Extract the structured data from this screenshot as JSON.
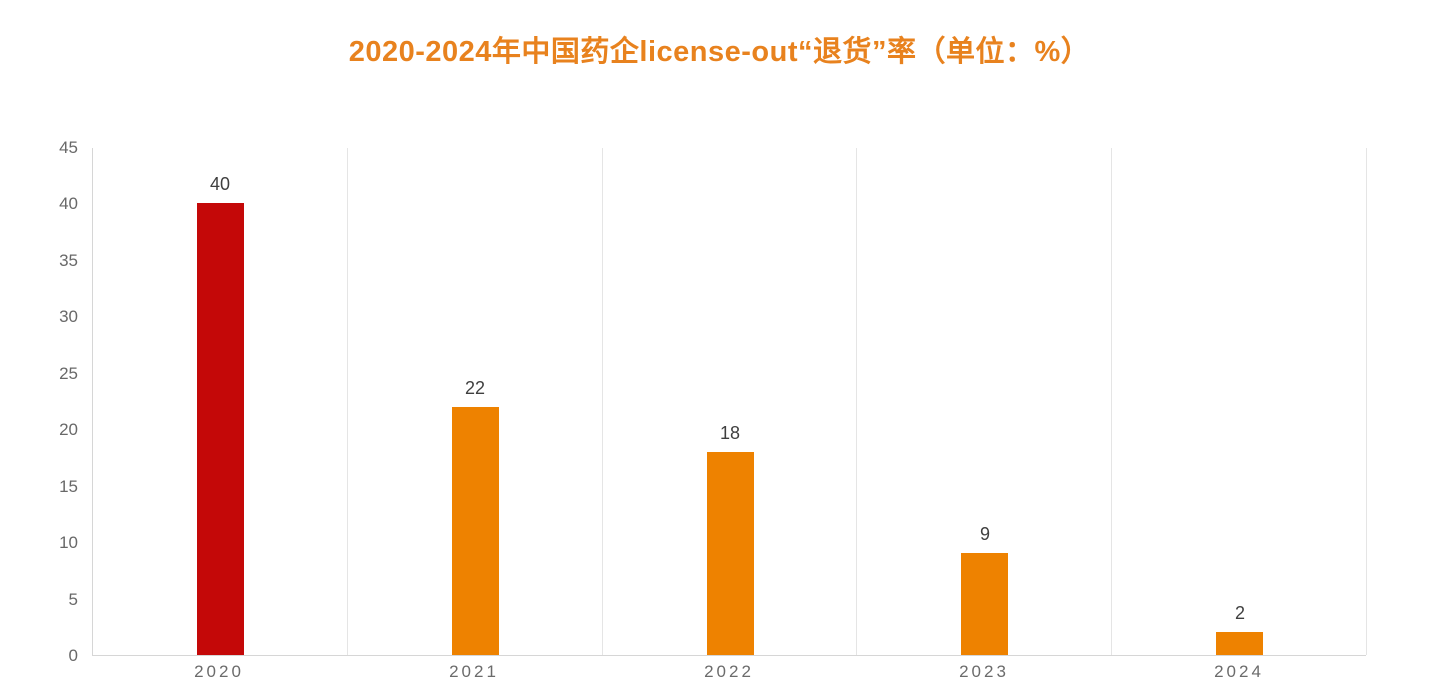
{
  "chart_data": {
    "type": "bar",
    "title": "2020-2024年中国药企license-out“退货”率（单位：%）",
    "categories": [
      "2020",
      "2021",
      "2022",
      "2023",
      "2024"
    ],
    "values": [
      40,
      22,
      18,
      9,
      2
    ],
    "series": [
      {
        "name": "license-out退货率",
        "values": [
          40,
          22,
          18,
          9,
          2
        ]
      }
    ],
    "xlabel": "",
    "ylabel": "",
    "ylim": [
      0,
      45
    ],
    "yticks": [
      0,
      5,
      10,
      15,
      20,
      25,
      30,
      35,
      40,
      45
    ],
    "grid": "vertical-category-separators-on",
    "horizontal_grid": "off",
    "legend": "none",
    "data_labels": [
      "40",
      "22",
      "18",
      "9",
      "2"
    ],
    "bar_colors": [
      "#c40808",
      "#ee8200",
      "#ee8200",
      "#ee8200",
      "#ee8200"
    ]
  },
  "style": {
    "title_color": "#e8821e",
    "highlight_bar_color": "#c40808",
    "default_bar_color": "#ee8200",
    "axis_line_color": "#d6d6d6",
    "gridline_color": "#e5e5e5",
    "tick_label_color": "#6b6b6b",
    "value_label_color": "#3f3f3f",
    "background_color": "#ffffff"
  }
}
